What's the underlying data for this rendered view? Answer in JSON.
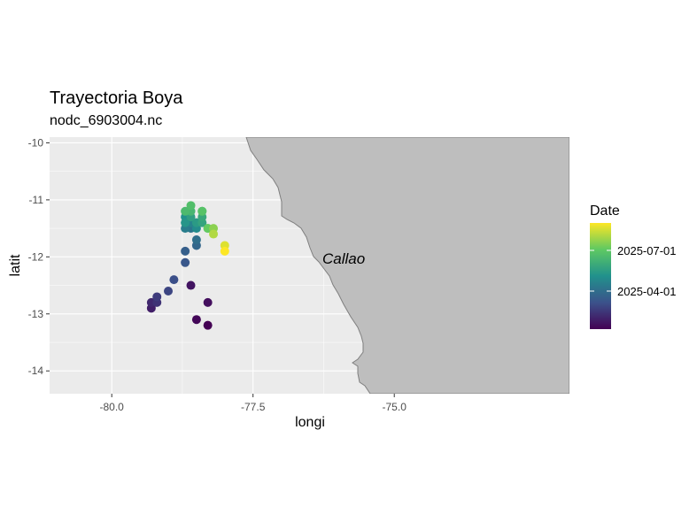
{
  "chart_data": {
    "type": "scatter",
    "title": "Trayectoria Boya",
    "subtitle": "nodc_6903004.nc",
    "xlabel": "longi",
    "ylabel": "latit",
    "xlim": [
      -81.1,
      -71.9
    ],
    "ylim": [
      -14.4,
      -9.9
    ],
    "xticks": [
      -80.0,
      -77.5,
      -75.0
    ],
    "xtick_labels": [
      "-80.0",
      "-77.5",
      "-75.0"
    ],
    "yticks": [
      -10,
      -11,
      -12,
      -13,
      -14
    ],
    "ytick_labels": [
      "-10",
      "-11",
      "-12",
      "-13",
      "-14"
    ],
    "grid": true,
    "annotation": "Callao",
    "legend": {
      "title": "Date",
      "position": "right",
      "labels": [
        "2025-07-01",
        "2025-04-01"
      ],
      "palette": [
        "#440154",
        "#3b528b",
        "#21918c",
        "#5ec962",
        "#fde725"
      ]
    },
    "land_color": "#bebebe",
    "coast_color": "#7f7f7f",
    "panel_color": "#ebebeb",
    "series": [
      {
        "x": [
          -78.3,
          -78.5,
          -78.3,
          -78.6,
          -79.3,
          -79.3,
          -79.2,
          -79.2,
          -79.0,
          -78.9,
          -78.7,
          -78.7,
          -78.5,
          -78.5,
          -78.6,
          -78.7,
          -78.6,
          -78.5,
          -78.7,
          -78.7,
          -78.5,
          -78.6,
          -78.4,
          -78.4,
          -78.3,
          -78.4,
          -78.6,
          -78.7,
          -78.6,
          -78.4,
          -78.3,
          -78.2,
          -78.2,
          -78.0,
          -78.0
        ],
        "y": [
          -13.2,
          -13.1,
          -12.8,
          -12.5,
          -12.9,
          -12.8,
          -12.8,
          -12.7,
          -12.6,
          -12.4,
          -12.1,
          -11.9,
          -11.8,
          -11.7,
          -11.5,
          -11.5,
          -11.4,
          -11.5,
          -11.3,
          -11.4,
          -11.4,
          -11.3,
          -11.4,
          -11.3,
          -11.5,
          -11.2,
          -11.2,
          -11.2,
          -11.1,
          -11.2,
          -11.5,
          -11.5,
          -11.6,
          -11.8,
          -11.9
        ],
        "date_fraction": [
          0.0,
          0.02,
          0.04,
          0.06,
          0.09,
          0.12,
          0.15,
          0.18,
          0.21,
          0.24,
          0.27,
          0.3,
          0.33,
          0.36,
          0.39,
          0.42,
          0.45,
          0.48,
          0.5,
          0.52,
          0.54,
          0.56,
          0.58,
          0.6,
          0.62,
          0.64,
          0.66,
          0.68,
          0.7,
          0.72,
          0.76,
          0.82,
          0.88,
          0.95,
          1.0
        ]
      }
    ]
  }
}
